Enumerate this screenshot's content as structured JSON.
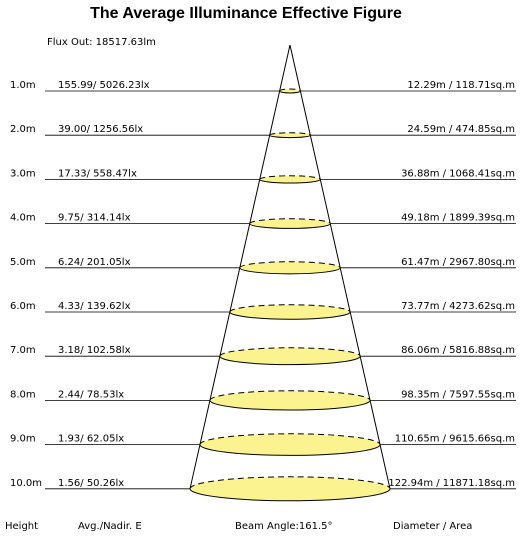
{
  "title": "The Average Illuminance Effective Figure",
  "flux": "Flux Out: 18517.63lm",
  "rows": [
    {
      "height": "1.0m",
      "avg": "155.99/ 5026.23lx",
      "size": "12.29m / 118.71sq.m"
    },
    {
      "height": "2.0m",
      "avg": "39.00/ 1256.56lx",
      "size": "24.59m / 474.85sq.m"
    },
    {
      "height": "3.0m",
      "avg": "17.33/ 558.47lx",
      "size": "36.88m / 1068.41sq.m"
    },
    {
      "height": "4.0m",
      "avg": "9.75/ 314.14lx",
      "size": "49.18m / 1899.39sq.m"
    },
    {
      "height": "5.0m",
      "avg": "6.24/ 201.05lx",
      "size": "61.47m / 2967.80sq.m"
    },
    {
      "height": "6.0m",
      "avg": "4.33/ 139.62lx",
      "size": "73.77m / 4273.62sq.m"
    },
    {
      "height": "7.0m",
      "avg": "3.18/ 102.58lx",
      "size": "86.06m / 5816.88sq.m"
    },
    {
      "height": "8.0m",
      "avg": "2.44/ 78.53lx",
      "size": "98.35m / 7597.55sq.m"
    },
    {
      "height": "9.0m",
      "avg": "1.93/ 62.05lx",
      "size": "110.65m / 9615.66sq.m"
    },
    {
      "height": "10.0m",
      "avg": "1.56/ 50.26lx",
      "size": "122.94m / 11871.18sq.m"
    }
  ],
  "footer": {
    "height": "Height",
    "avg": "Avg./Nadir. E",
    "beam": "Beam Angle:161.5°",
    "size": "Diameter / Area"
  }
}
